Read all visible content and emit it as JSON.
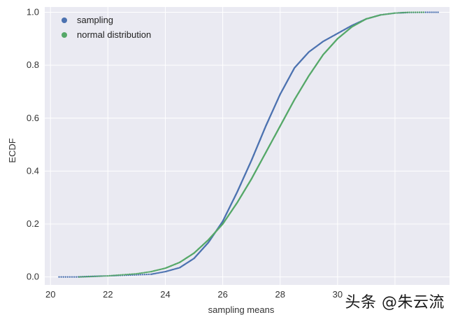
{
  "chart_data": {
    "type": "scatter",
    "title": "",
    "xlabel": "sampling means",
    "ylabel": "ECDF",
    "xlim": [
      19.8,
      33.9
    ],
    "ylim": [
      -0.03,
      1.02
    ],
    "xticks": [
      20,
      22,
      24,
      26,
      28,
      30
    ],
    "xtick_labels": [
      "20",
      "22",
      "24",
      "26",
      "28",
      "30"
    ],
    "yticks": [
      0.0,
      0.2,
      0.4,
      0.6,
      0.8,
      1.0
    ],
    "ytick_labels": [
      "0.0",
      "0.2",
      "0.4",
      "0.6",
      "0.8",
      "1.0"
    ],
    "grid": true,
    "legend_position": "top-left",
    "series": [
      {
        "name": "sampling",
        "color": "#4c72b0",
        "x": [
          20.3,
          20.9,
          21.4,
          22.0,
          22.5,
          23.0,
          23.5,
          24.0,
          24.5,
          25.0,
          25.5,
          26.0,
          26.5,
          27.0,
          27.5,
          28.0,
          28.5,
          29.0,
          29.5,
          30.0,
          30.5,
          31.0,
          31.5,
          32.0,
          32.5,
          33.0,
          33.5
        ],
        "y": [
          0.0,
          0.0,
          0.002,
          0.004,
          0.006,
          0.008,
          0.01,
          0.02,
          0.035,
          0.07,
          0.13,
          0.21,
          0.32,
          0.44,
          0.57,
          0.69,
          0.79,
          0.85,
          0.89,
          0.92,
          0.95,
          0.975,
          0.99,
          0.997,
          0.999,
          1.0,
          1.0
        ]
      },
      {
        "name": "normal distribution",
        "color": "#55a868",
        "x": [
          21.0,
          21.5,
          22.0,
          22.5,
          23.0,
          23.5,
          24.0,
          24.5,
          25.0,
          25.5,
          26.0,
          26.5,
          27.0,
          27.5,
          28.0,
          28.5,
          29.0,
          29.5,
          30.0,
          30.5,
          31.0,
          31.5,
          32.0,
          32.5,
          33.0
        ],
        "y": [
          0.0,
          0.002,
          0.004,
          0.008,
          0.012,
          0.02,
          0.033,
          0.055,
          0.09,
          0.14,
          0.2,
          0.28,
          0.37,
          0.47,
          0.57,
          0.67,
          0.76,
          0.84,
          0.9,
          0.945,
          0.975,
          0.99,
          0.997,
          1.0,
          1.0
        ]
      }
    ]
  },
  "watermark": "头条 @朱云流",
  "colors": {
    "plot_background": "#eaeaf2",
    "grid": "#ffffff"
  }
}
